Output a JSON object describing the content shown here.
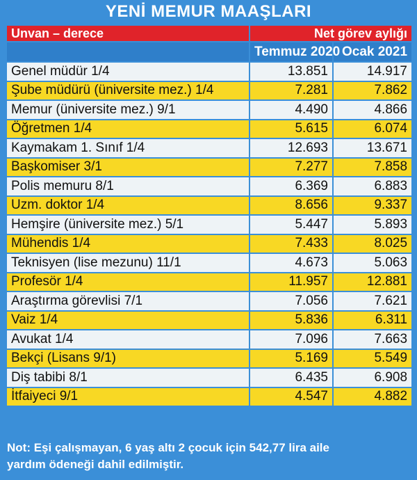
{
  "header": {
    "title": "YENİ MEMUR MAAŞLARI"
  },
  "table": {
    "head": {
      "label": "Unvan – derece",
      "group": "Net görev aylığı",
      "columns": [
        "Temmuz 2020",
        "Ocak 2021"
      ]
    },
    "rows": [
      [
        "Genel müdür  1/4",
        "13.851",
        "14.917"
      ],
      [
        "Şube müdürü (üniversite mez.)  1/4",
        "7.281",
        "7.862"
      ],
      [
        "Memur (üniversite mez.)  9/1",
        "4.490",
        "4.866"
      ],
      [
        "Öğretmen 1/4",
        "5.615",
        "6.074"
      ],
      [
        "Kaymakam 1. Sınıf  1/4",
        "12.693",
        "13.671"
      ],
      [
        "Başkomiser   3/1",
        "7.277",
        "7.858"
      ],
      [
        "Polis memuru   8/1",
        "6.369",
        "6.883"
      ],
      [
        "Uzm. doktor  1/4",
        "8.656",
        "9.337"
      ],
      [
        "Hemşire (üniversite mez.)   5/1",
        "5.447",
        "5.893"
      ],
      [
        "Mühendis 1/4",
        "7.433",
        "8.025"
      ],
      [
        "Teknisyen (lise mezunu)  11/1",
        "4.673",
        "5.063"
      ],
      [
        "Profesör 1/4",
        "11.957",
        "12.881"
      ],
      [
        "Araştırma görevlisi   7/1",
        "7.056",
        "7.621"
      ],
      [
        "Vaiz  1/4",
        "5.836",
        "6.311"
      ],
      [
        "Avukat  1/4",
        "7.096",
        "7.663"
      ],
      [
        "Bekçi (Lisans 9/1)",
        "5.169",
        "5.549"
      ],
      [
        "Diş tabibi 8/1",
        "6.435",
        "6.908"
      ],
      [
        "İtfaiyeci 9/1",
        "4.547",
        "4.882"
      ]
    ]
  },
  "note": "Not: Eşi çalışmayan, 6 yaş altı 2 çocuk için 542,77 lira aile yardım ödeneği dahil edilmiştir."
}
